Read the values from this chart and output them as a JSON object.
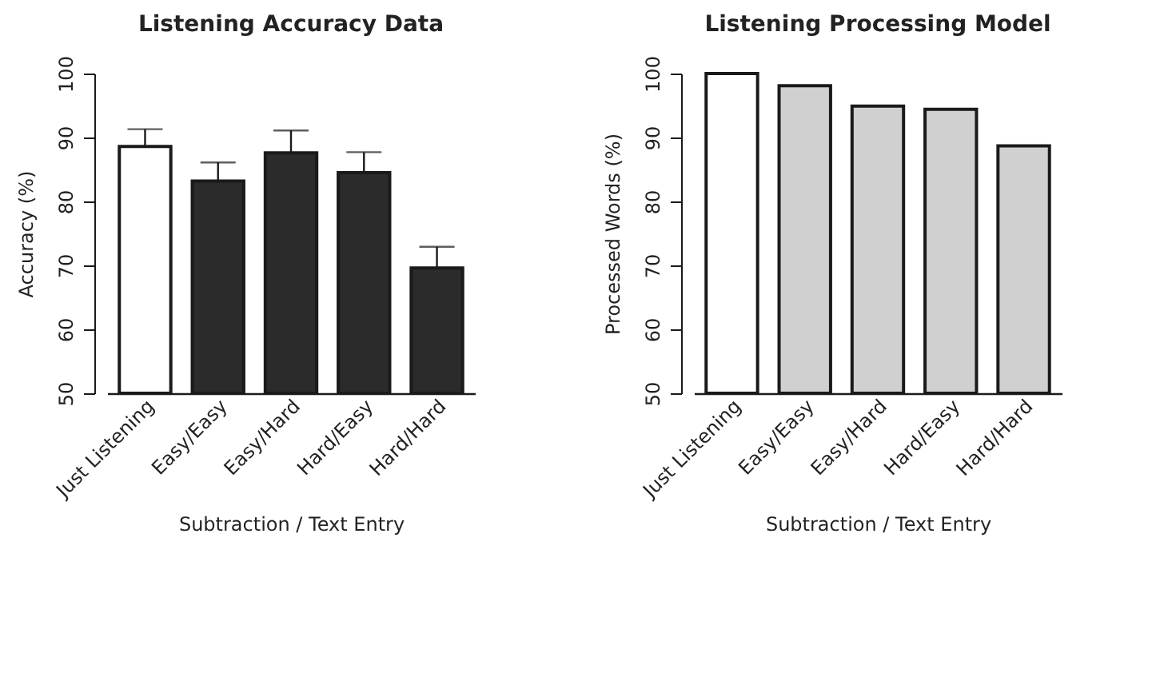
{
  "chart_data": [
    {
      "type": "bar",
      "title": "Listening Accuracy Data",
      "xlabel": "Subtraction / Text Entry",
      "ylabel": "Accuracy (%)",
      "categories": [
        "Just Listening",
        "Easy/Easy",
        "Easy/Hard",
        "Hard/Easy",
        "Hard/Hard"
      ],
      "values": [
        88.6,
        83.2,
        87.6,
        84.5,
        69.6
      ],
      "colors": [
        "#ffffff",
        "#2b2b2b",
        "#2b2b2b",
        "#2b2b2b",
        "#2b2b2b"
      ],
      "errors": [
        [
          88.6,
          91.3
        ],
        [
          83.2,
          86.1
        ],
        [
          87.6,
          91.1
        ],
        [
          84.5,
          87.7
        ],
        [
          69.6,
          72.9
        ]
      ],
      "ylim": [
        50,
        100
      ],
      "yticks": [
        50,
        60,
        70,
        80,
        90,
        100
      ]
    },
    {
      "type": "bar",
      "title": "Listening Processing Model",
      "xlabel": "Subtraction / Text Entry",
      "ylabel": "Processed Words (%)",
      "categories": [
        "Just Listening",
        "Easy/Easy",
        "Easy/Hard",
        "Hard/Easy",
        "Hard/Hard"
      ],
      "values": [
        100,
        98.1,
        94.9,
        94.4,
        88.7
      ],
      "colors": [
        "#ffffff",
        "#d0d0d0",
        "#d0d0d0",
        "#d0d0d0",
        "#d0d0d0"
      ],
      "ylim": [
        50,
        100
      ],
      "yticks": [
        50,
        60,
        70,
        80,
        90,
        100
      ]
    }
  ]
}
